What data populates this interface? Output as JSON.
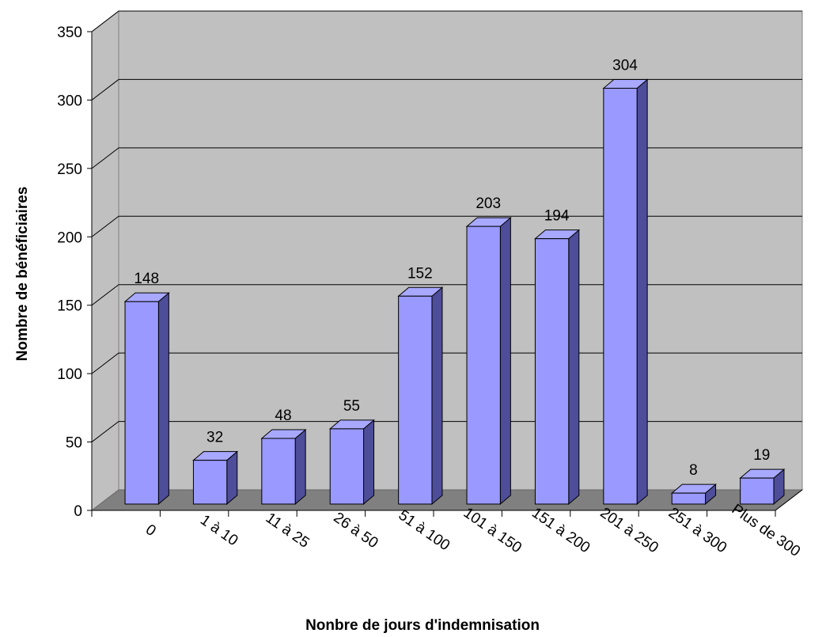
{
  "colors": {
    "wall": "#c0c0c0",
    "floor": "#808080",
    "floor_edge": "#696969",
    "grid": "#000000",
    "bar_front": "#9999ff",
    "bar_top": "#a8a8ff",
    "bar_side": "#4d4d99",
    "bar_stroke": "#000000"
  },
  "chart_data": {
    "type": "bar",
    "title": "",
    "xlabel": "Nonbre de jours d'indemnisation",
    "ylabel": "Nombre de bénéficiaires",
    "categories": [
      "0",
      "1 à 10",
      "11 à 25",
      "26 à 50",
      "51 à 100",
      "101 à 150",
      "151 à 200",
      "201 à 250",
      "251 à 300",
      "Plus de 300"
    ],
    "values": [
      148,
      32,
      48,
      55,
      152,
      203,
      194,
      304,
      8,
      19
    ],
    "data_labels": [
      "148",
      "32",
      "48",
      "55",
      "152",
      "203",
      "194",
      "304",
      "8",
      "19"
    ],
    "y_ticks": [
      "0",
      "50",
      "100",
      "150",
      "200",
      "250",
      "300",
      "350"
    ],
    "ylim": [
      0,
      350
    ],
    "grid": true,
    "legend": "none",
    "style": "3d"
  }
}
